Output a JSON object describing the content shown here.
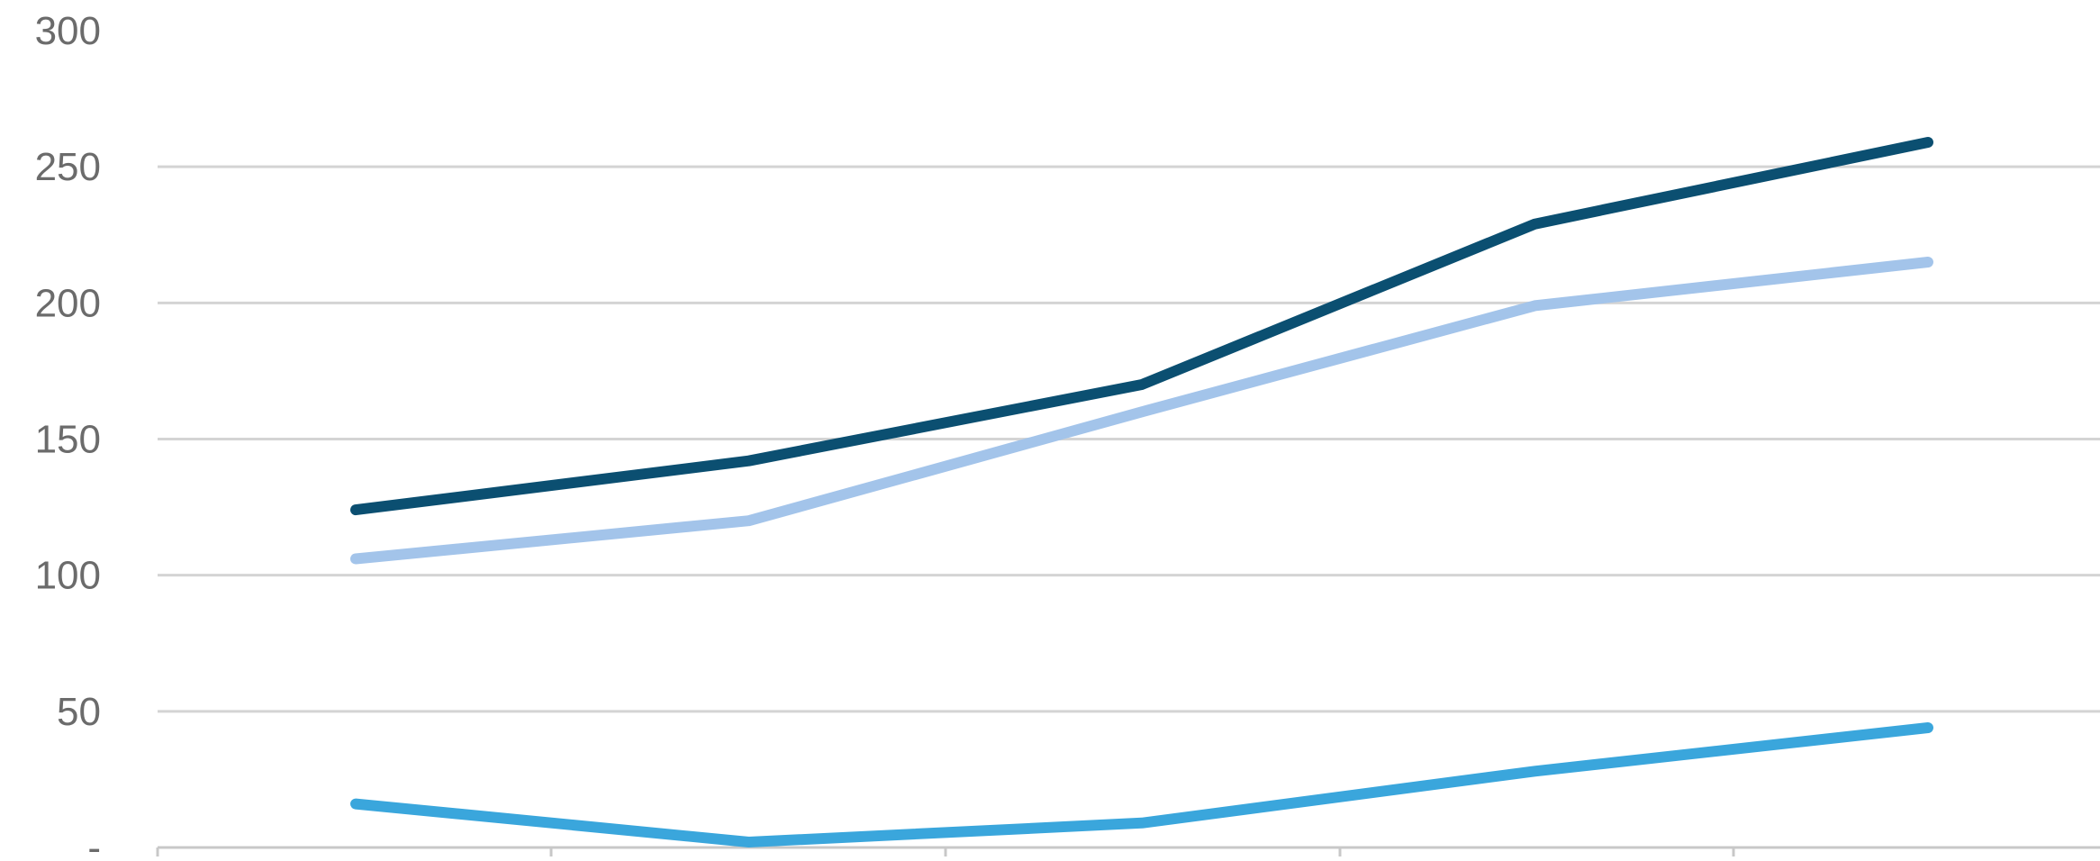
{
  "chart_data": {
    "type": "line",
    "title": "",
    "xlabel": "",
    "ylabel": "",
    "x": [
      1,
      2,
      3,
      4,
      5
    ],
    "ylim": [
      0,
      300
    ],
    "y_ticks": [
      {
        "value": 300,
        "label": "300"
      },
      {
        "value": 250,
        "label": "250"
      },
      {
        "value": 200,
        "label": "200"
      },
      {
        "value": 150,
        "label": "150"
      },
      {
        "value": 100,
        "label": "100"
      },
      {
        "value": 50,
        "label": "50"
      },
      {
        "value": 0,
        "label": "-"
      }
    ],
    "grid": true,
    "legend": "none",
    "series": [
      {
        "color": "#0b4f71",
        "values": [
          124,
          142,
          170,
          229,
          259
        ]
      },
      {
        "color": "#a3c4ea",
        "values": [
          106,
          120,
          160,
          199,
          215
        ]
      },
      {
        "color": "#3aa6dc",
        "values": [
          16,
          2,
          9,
          28,
          44
        ]
      }
    ]
  }
}
